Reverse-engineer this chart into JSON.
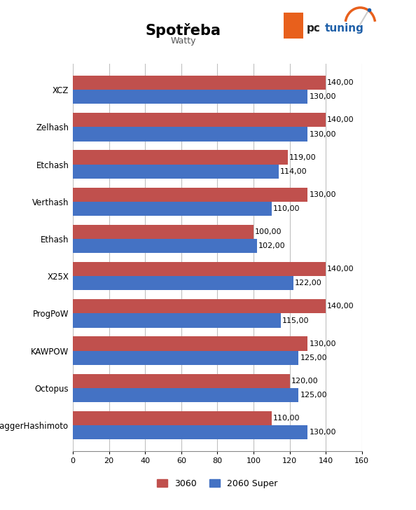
{
  "title": "Spotřeba",
  "subtitle": "Watty",
  "categories": [
    "XCZ",
    "Zelhash",
    "Etchash",
    "Verthash",
    "Ethash",
    "X25X",
    "ProgPoW",
    "KAWPOW",
    "Octopus",
    "DaggerHashimoto"
  ],
  "series_3060": [
    140,
    140,
    119,
    130,
    100,
    140,
    140,
    130,
    120,
    110
  ],
  "series_2060super": [
    130,
    130,
    114,
    110,
    102,
    122,
    115,
    125,
    125,
    130
  ],
  "color_3060": "#C0504D",
  "color_2060super": "#4472C4",
  "xlim": [
    0,
    160
  ],
  "xticks": [
    0,
    20,
    40,
    60,
    80,
    100,
    120,
    140,
    160
  ],
  "bar_height": 0.38,
  "label_3060": "3060",
  "label_2060super": "2060 Super",
  "bg_color": "#FFFFFF",
  "plot_bg_color": "#FFFFFF",
  "grid_color": "#C0C0C0",
  "label_fontsize": 8.5,
  "value_fontsize": 8,
  "title_fontsize": 15,
  "subtitle_fontsize": 9,
  "logo_orange": "#E8601C",
  "logo_blue": "#1E5FA8",
  "logo_arc_orange": "#E8601C"
}
